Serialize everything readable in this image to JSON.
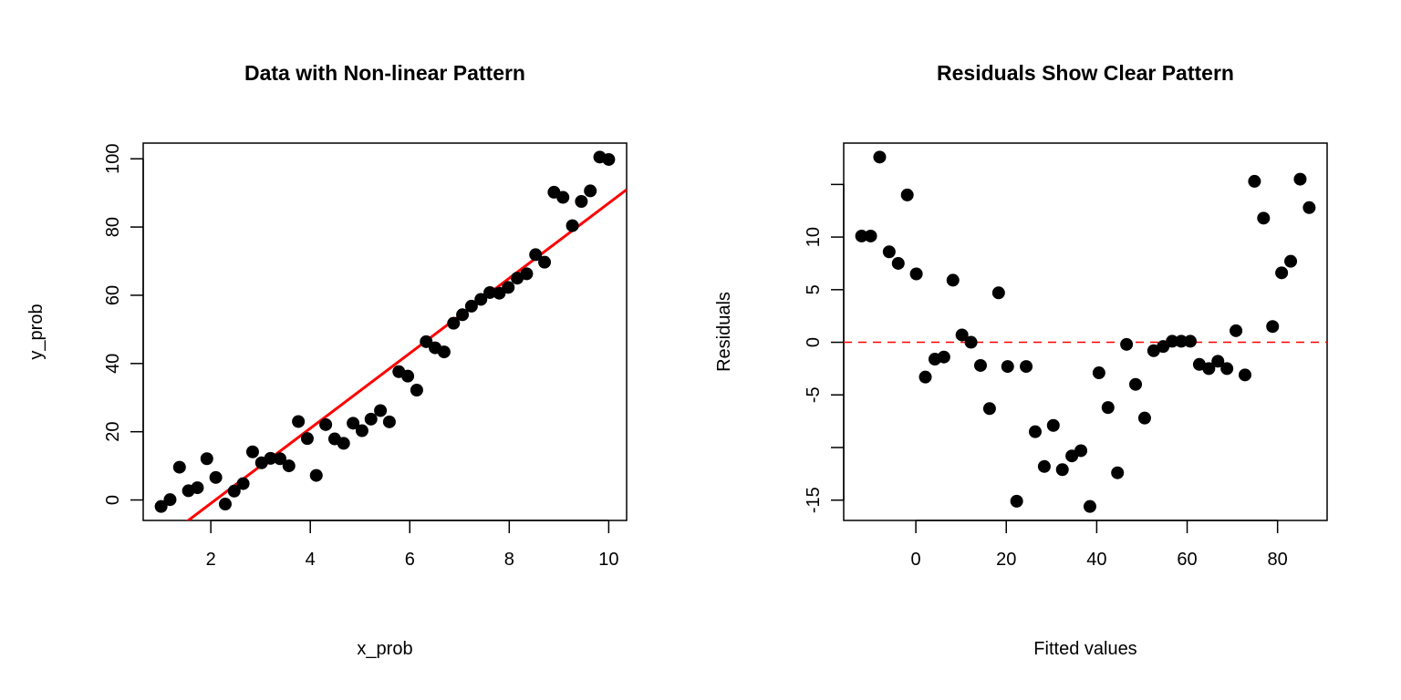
{
  "chart_data": [
    {
      "type": "scatter",
      "title": "Data with Non-linear Pattern",
      "xlabel": "x_prob",
      "ylabel": "y_prob",
      "xlim": [
        0.64,
        10.36
      ],
      "ylim": [
        -6.0,
        104.6
      ],
      "xticks": [
        2,
        4,
        6,
        8,
        10
      ],
      "yticks": [
        0,
        20,
        40,
        60,
        80,
        100
      ],
      "grid": false,
      "point_color": "#000000",
      "x": [
        1.0,
        1.18,
        1.37,
        1.55,
        1.73,
        1.92,
        2.1,
        2.29,
        2.47,
        2.65,
        2.84,
        3.02,
        3.2,
        3.39,
        3.57,
        3.76,
        3.94,
        4.12,
        4.31,
        4.49,
        4.67,
        4.86,
        5.04,
        5.22,
        5.41,
        5.59,
        5.78,
        5.96,
        6.14,
        6.33,
        6.51,
        6.69,
        6.88,
        7.06,
        7.24,
        7.43,
        7.61,
        7.8,
        7.98,
        8.16,
        8.35,
        8.53,
        8.71,
        8.9,
        9.08,
        9.27,
        9.45,
        9.63,
        9.82,
        10.0
      ],
      "y": [
        -1.9,
        0.1,
        9.6,
        2.7,
        3.6,
        12.1,
        6.6,
        -1.2,
        2.6,
        4.8,
        14.1,
        10.9,
        12.2,
        12.1,
        10.0,
        23.0,
        18.0,
        7.2,
        22.1,
        17.9,
        16.6,
        22.5,
        20.3,
        23.7,
        26.2,
        22.9,
        37.6,
        36.3,
        32.2,
        46.4,
        44.6,
        43.4,
        51.8,
        54.3,
        56.8,
        58.8,
        60.8,
        60.6,
        62.3,
        65.0,
        66.3,
        71.9,
        69.7,
        90.2,
        88.7,
        80.4,
        87.5,
        90.6,
        100.5,
        99.8
      ],
      "fit_line": {
        "intercept": -23.0,
        "slope": 11.0,
        "color": "#ff0000"
      }
    },
    {
      "type": "scatter",
      "title": "Residuals Show Clear Pattern",
      "xlabel": "Fitted values",
      "ylabel": "Residuals",
      "xlim": [
        -15.96,
        90.96
      ],
      "ylim": [
        -16.93,
        18.93
      ],
      "xticks": [
        0,
        20,
        40,
        60,
        80
      ],
      "yticks": [
        -15,
        -10,
        -5,
        0,
        5,
        10,
        15
      ],
      "ytick_labels": [
        "-15",
        "",
        "-5",
        "0",
        "5",
        "10",
        ""
      ],
      "grid": false,
      "point_color": "#000000",
      "x": [
        -12.0,
        -10.0,
        -8.0,
        -5.9,
        -3.9,
        -1.9,
        0.1,
        2.1,
        4.2,
        6.2,
        8.2,
        10.2,
        12.2,
        14.3,
        16.3,
        18.3,
        20.3,
        22.3,
        24.4,
        26.4,
        28.4,
        30.4,
        32.4,
        34.5,
        36.5,
        38.5,
        40.5,
        42.5,
        44.6,
        46.6,
        48.6,
        50.6,
        52.6,
        54.7,
        56.7,
        58.7,
        60.7,
        62.7,
        64.8,
        66.8,
        68.8,
        70.8,
        72.8,
        74.9,
        76.9,
        78.9,
        80.9,
        82.9,
        85.0,
        87.0
      ],
      "y": [
        10.1,
        10.1,
        17.6,
        8.6,
        7.5,
        14.0,
        6.5,
        -3.3,
        -1.6,
        -1.4,
        5.9,
        0.7,
        0.0,
        -2.2,
        -6.3,
        4.7,
        -2.3,
        -15.1,
        -2.3,
        -8.5,
        -11.8,
        -7.9,
        -12.1,
        -10.8,
        -10.3,
        -15.6,
        -2.9,
        -6.2,
        -12.4,
        -0.2,
        -4.0,
        -7.2,
        -0.8,
        -0.4,
        0.1,
        0.1,
        0.1,
        -2.1,
        -2.5,
        -1.8,
        -2.5,
        1.1,
        -3.1,
        15.3,
        11.8,
        1.5,
        6.6,
        7.7,
        15.5,
        12.8
      ],
      "hline": {
        "y": 0,
        "style": "dashed",
        "color": "#ff0000"
      }
    }
  ]
}
